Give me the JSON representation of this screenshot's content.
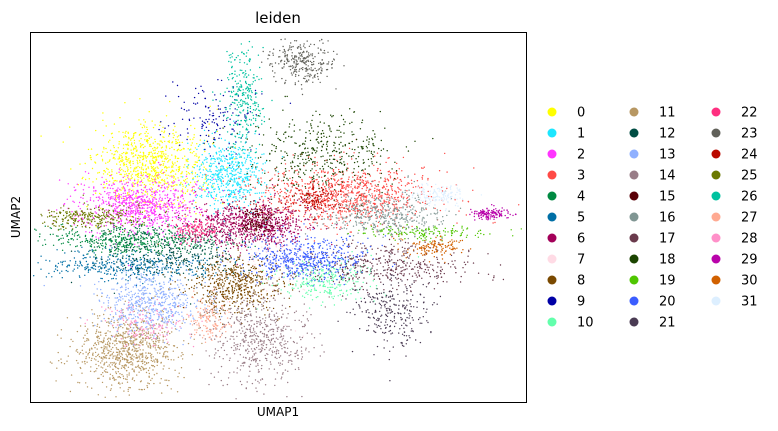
{
  "chart_data": {
    "type": "scatter",
    "title": "leiden",
    "xlabel": "UMAP1",
    "ylabel": "UMAP2",
    "grid": false,
    "x_ticks": "none",
    "y_ticks": "none",
    "legend_placement": "right, outside plot, 3 columns",
    "xlim": [
      0,
      100
    ],
    "ylim": [
      0,
      100
    ],
    "series": [
      {
        "name": "0",
        "color": "#ffff00",
        "center": [
          24,
          64
        ],
        "spread": [
          5.5,
          5.5
        ],
        "share": 6
      },
      {
        "name": "1",
        "color": "#1ce6ff",
        "center": [
          40,
          62
        ],
        "spread": [
          3.5,
          5
        ],
        "share": 4
      },
      {
        "name": "2",
        "color": "#ff34ff",
        "center": [
          22,
          53
        ],
        "spread": [
          6,
          4
        ],
        "share": 6
      },
      {
        "name": "3",
        "color": "#ff4a46",
        "center": [
          63,
          56
        ],
        "spread": [
          9,
          4
        ],
        "share": 7
      },
      {
        "name": "4",
        "color": "#008941",
        "center": [
          22,
          44
        ],
        "spread": [
          9,
          2
        ],
        "share": 4
      },
      {
        "name": "5",
        "color": "#006fa6",
        "center": [
          20,
          37
        ],
        "spread": [
          9,
          2
        ],
        "share": 3
      },
      {
        "name": "6",
        "color": "#a30059",
        "center": [
          44,
          48
        ],
        "spread": [
          6,
          3
        ],
        "share": 6
      },
      {
        "name": "7",
        "color": "#ffdbe5",
        "center": [
          48,
          40
        ],
        "spread": [
          5,
          6
        ],
        "share": 1
      },
      {
        "name": "8",
        "color": "#7a4900",
        "center": [
          41,
          32
        ],
        "spread": [
          5,
          4
        ],
        "share": 4
      },
      {
        "name": "9",
        "color": "#0000a6",
        "center": [
          37,
          77
        ],
        "spread": [
          5,
          5
        ],
        "share": 1
      },
      {
        "name": "10",
        "color": "#63ffac",
        "center": [
          59,
          33
        ],
        "spread": [
          5,
          3
        ],
        "share": 2
      },
      {
        "name": "11",
        "color": "#b79762",
        "center": [
          19,
          14
        ],
        "spread": [
          5,
          5
        ],
        "share": 6
      },
      {
        "name": "12",
        "color": "#004d43",
        "center": [
          28,
          40
        ],
        "spread": [
          7,
          3
        ],
        "share": 2
      },
      {
        "name": "13",
        "color": "#8fb0ff",
        "center": [
          24,
          27
        ],
        "spread": [
          5,
          4
        ],
        "share": 4
      },
      {
        "name": "14",
        "color": "#997d87",
        "center": [
          46,
          17
        ],
        "spread": [
          5,
          6
        ],
        "share": 4
      },
      {
        "name": "15",
        "color": "#5a0007",
        "center": [
          46,
          49
        ],
        "spread": [
          2,
          2
        ],
        "share": 1
      },
      {
        "name": "16",
        "color": "#809693",
        "center": [
          71,
          51
        ],
        "spread": [
          6,
          3
        ],
        "share": 3
      },
      {
        "name": "17",
        "color": "#6a3a4c",
        "center": [
          71,
          37
        ],
        "spread": [
          9,
          3
        ],
        "share": 3
      },
      {
        "name": "18",
        "color": "#1b4400",
        "center": [
          59,
          67
        ],
        "spread": [
          7,
          5
        ],
        "share": 3
      },
      {
        "name": "19",
        "color": "#4fc601",
        "center": [
          79,
          46
        ],
        "spread": [
          7,
          1
        ],
        "share": 1
      },
      {
        "name": "20",
        "color": "#3b5dff",
        "center": [
          55,
          39
        ],
        "spread": [
          6,
          3
        ],
        "share": 4
      },
      {
        "name": "21",
        "color": "#4a3b53",
        "center": [
          73,
          25
        ],
        "spread": [
          4,
          5
        ],
        "share": 2
      },
      {
        "name": "22",
        "color": "#ff2f80",
        "center": [
          33,
          47
        ],
        "spread": [
          3,
          2
        ],
        "share": 1
      },
      {
        "name": "23",
        "color": "#61615a",
        "center": [
          55,
          92
        ],
        "spread": [
          3,
          3
        ],
        "share": 2
      },
      {
        "name": "24",
        "color": "#ba0900",
        "center": [
          57,
          55
        ],
        "spread": [
          3,
          2
        ],
        "share": 1
      },
      {
        "name": "25",
        "color": "#6b7900",
        "center": [
          12,
          50
        ],
        "spread": [
          5,
          1.5
        ],
        "share": 2
      },
      {
        "name": "26",
        "color": "#00c2a0",
        "center": [
          43,
          82
        ],
        "spread": [
          2,
          7
        ],
        "share": 2
      },
      {
        "name": "27",
        "color": "#ffaa92",
        "center": [
          36,
          23
        ],
        "spread": [
          2,
          3
        ],
        "share": 1
      },
      {
        "name": "28",
        "color": "#ff90c9",
        "center": [
          23,
          21
        ],
        "spread": [
          4,
          3
        ],
        "share": 1
      },
      {
        "name": "29",
        "color": "#b903aa",
        "center": [
          93,
          51
        ],
        "spread": [
          2,
          0.8
        ],
        "share": 1
      },
      {
        "name": "30",
        "color": "#d16100",
        "center": [
          82,
          42
        ],
        "spread": [
          3,
          1.5
        ],
        "share": 1
      },
      {
        "name": "31",
        "color": "#ddefff",
        "center": [
          82,
          56
        ],
        "spread": [
          3,
          1.5
        ],
        "share": 1
      }
    ]
  }
}
